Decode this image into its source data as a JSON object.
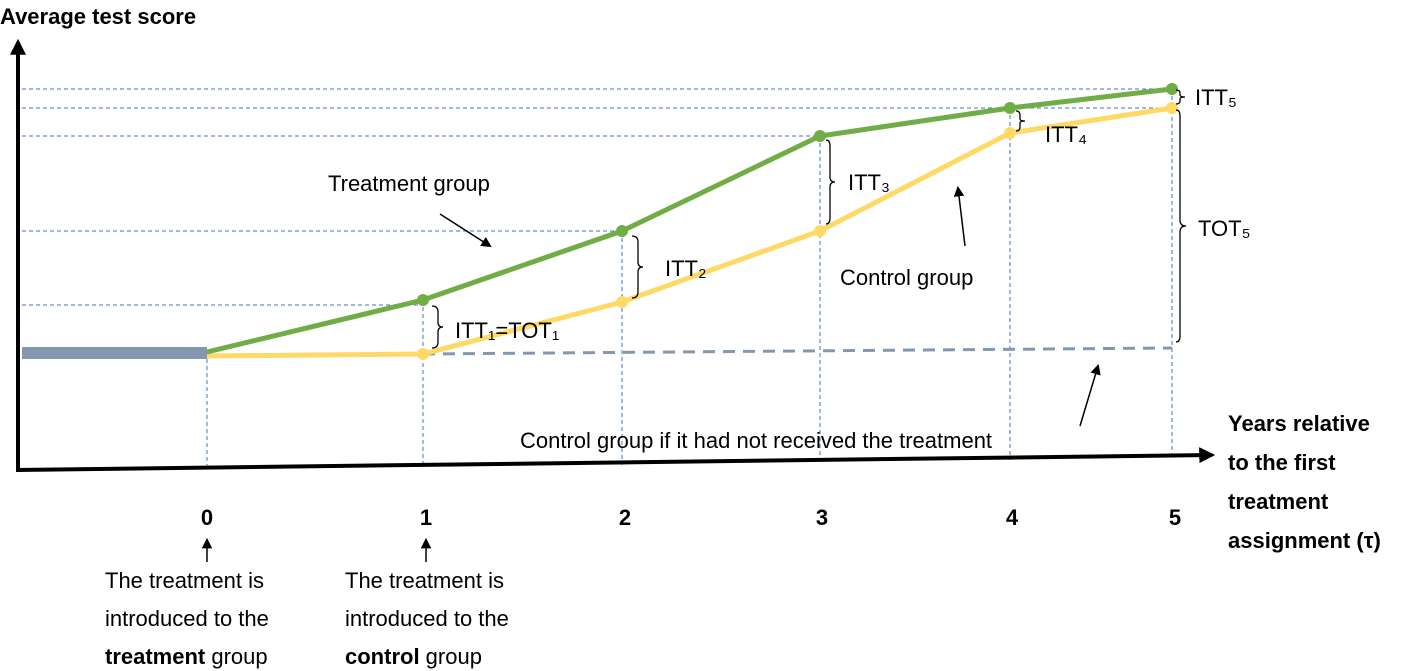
{
  "diagram": {
    "y_axis_title": "Average test score",
    "x_axis_title": [
      "Years relative",
      "to the first",
      "treatment",
      "assignment (τ)"
    ],
    "x_ticks": [
      "0",
      "1",
      "2",
      "3",
      "4",
      "5"
    ],
    "series": {
      "treatment": "Treatment group",
      "control": "Control group",
      "counterfactual": "Control group if it had not received the treatment"
    },
    "effects": [
      "ITT₁=TOT₁",
      "ITT₂",
      "ITT₃",
      "ITT₄",
      "ITT₅",
      "TOT₅"
    ],
    "notes": [
      {
        "lines": [
          "The treatment is",
          "introduced to the"
        ],
        "bold": "treatment",
        "tail": " group"
      },
      {
        "lines": [
          "The treatment is",
          "introduced to the"
        ],
        "bold": "control",
        "tail": " group"
      }
    ]
  }
}
